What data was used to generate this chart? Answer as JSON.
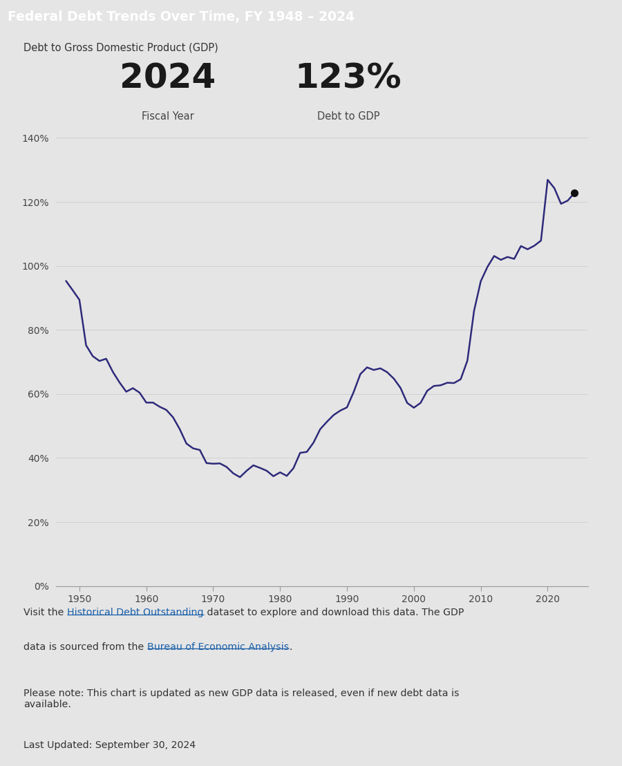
{
  "title": "Federal Debt Trends Over Time, FY 1948 – 2024",
  "subtitle": "Debt to Gross Domestic Product (GDP)",
  "highlight_year": "2024",
  "highlight_value": "123%",
  "label1": "Fiscal Year",
  "label2": "Debt to GDP",
  "line_color": "#2e2a7a",
  "marker_color": "#111111",
  "bg_color": "#e5e5e5",
  "title_bg_color": "#1f4e9c",
  "title_text_color": "#ffffff",
  "years": [
    1948,
    1949,
    1950,
    1951,
    1952,
    1953,
    1954,
    1955,
    1956,
    1957,
    1958,
    1959,
    1960,
    1961,
    1962,
    1963,
    1964,
    1965,
    1966,
    1967,
    1968,
    1969,
    1970,
    1971,
    1972,
    1973,
    1974,
    1975,
    1976,
    1977,
    1978,
    1979,
    1980,
    1981,
    1982,
    1983,
    1984,
    1985,
    1986,
    1987,
    1988,
    1989,
    1990,
    1991,
    1992,
    1993,
    1994,
    1995,
    1996,
    1997,
    1998,
    1999,
    2000,
    2001,
    2002,
    2003,
    2004,
    2005,
    2006,
    2007,
    2008,
    2009,
    2010,
    2011,
    2012,
    2013,
    2014,
    2015,
    2016,
    2017,
    2018,
    2019,
    2020,
    2021,
    2022,
    2023,
    2024
  ],
  "values": [
    95.3,
    92.4,
    89.4,
    75.2,
    71.8,
    70.3,
    71.0,
    66.9,
    63.6,
    60.7,
    61.8,
    60.4,
    57.3,
    57.3,
    56.0,
    55.0,
    52.7,
    49.0,
    44.5,
    43.0,
    42.5,
    38.4,
    38.2,
    38.3,
    37.2,
    35.2,
    34.0,
    36.0,
    37.7,
    36.9,
    36.0,
    34.3,
    35.5,
    34.4,
    36.8,
    41.6,
    41.9,
    44.8,
    49.0,
    51.3,
    53.4,
    54.8,
    55.8,
    60.6,
    66.2,
    68.3,
    67.5,
    68.0,
    66.8,
    64.8,
    61.9,
    57.2,
    55.7,
    57.2,
    61.0,
    62.5,
    62.7,
    63.5,
    63.4,
    64.6,
    70.4,
    86.0,
    95.2,
    99.7,
    103.1,
    101.9,
    102.8,
    102.2,
    106.2,
    105.2,
    106.3,
    107.9,
    126.9,
    124.3,
    119.4,
    120.4,
    122.8
  ],
  "yticks": [
    0,
    20,
    40,
    60,
    80,
    100,
    120,
    140
  ],
  "xticks": [
    1950,
    1960,
    1970,
    1980,
    1990,
    2000,
    2010,
    2020
  ],
  "xlim": [
    1946.5,
    2026
  ],
  "ylim": [
    0,
    140
  ],
  "footer_line1_plain1": "Visit the ",
  "footer_line1_link1": "Historical Debt Outstanding",
  "footer_line1_plain2": " dataset to explore and download this data. The GDP",
  "footer_line2_plain1": "data is sourced from the ",
  "footer_line2_link1": "Bureau of Economic Analysis",
  "footer_line2_plain2": ".",
  "footer_note": "Please note: This chart is updated as new GDP data is released, even if new debt data is\navailable.",
  "footer_updated": "Last Updated: September 30, 2024",
  "link_color": "#1a5fa8"
}
